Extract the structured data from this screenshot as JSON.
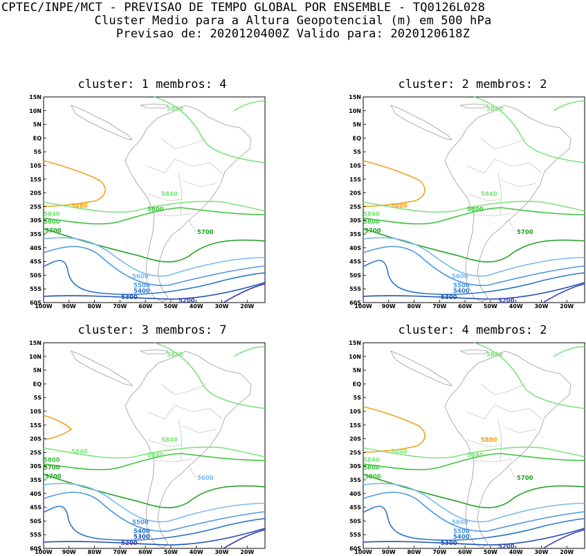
{
  "header": {
    "line1": "CPTEC/INPE/MCT - PREVISAO DE TEMPO GLOBAL POR ENSEMBLE - TQ0126L028",
    "line2": "Cluster Medio para a Altura Geopotencial (m) em 500 hPa",
    "line3": "Previsao de: 2020120400Z   Valido para: 2020120618Z"
  },
  "chart_data": [
    {
      "type": "contour-map",
      "title": "cluster: 1  membros: 4",
      "xticks": [
        "100W",
        "90W",
        "80W",
        "70W",
        "60W",
        "50W",
        "40W",
        "30W",
        "20W"
      ],
      "yticks": [
        "15N",
        "10N",
        "5N",
        "EQ",
        "5S",
        "10S",
        "15S",
        "20S",
        "25S",
        "30S",
        "35S",
        "40S",
        "45S",
        "50S",
        "55S",
        "60S"
      ],
      "contour_labels": [
        "5840",
        "5880",
        "5840",
        "5800",
        "5840",
        "5800",
        "5700",
        "5700",
        "5600",
        "5500",
        "5400",
        "5300",
        "5200"
      ]
    },
    {
      "type": "contour-map",
      "title": "cluster: 2  membros: 2",
      "xticks": [
        "100W",
        "90W",
        "80W",
        "70W",
        "60W",
        "50W",
        "40W",
        "30W",
        "20W"
      ],
      "yticks": [
        "15N",
        "10N",
        "5N",
        "EQ",
        "5S",
        "10S",
        "15S",
        "20S",
        "25S",
        "30S",
        "35S",
        "40S",
        "45S",
        "50S",
        "55S",
        "60S"
      ],
      "contour_labels": [
        "5840",
        "5880",
        "5840",
        "5800",
        "5840",
        "5800",
        "5700",
        "5700",
        "5600",
        "5500",
        "5400",
        "5300",
        "5200"
      ]
    },
    {
      "type": "contour-map",
      "title": "cluster: 3  membros: 7",
      "xticks": [
        "100W",
        "90W",
        "80W",
        "70W",
        "60W",
        "50W",
        "40W",
        "30W",
        "20W"
      ],
      "yticks": [
        "15N",
        "10N",
        "5N",
        "EQ",
        "5S",
        "10S",
        "15S",
        "20S",
        "25S",
        "30S",
        "35S",
        "40S",
        "45S",
        "50S",
        "55S",
        "60S"
      ],
      "contour_labels": [
        "5840",
        "5840",
        "5840",
        "5840",
        "5800",
        "5700",
        "5700",
        "5600",
        "5500",
        "5400",
        "5300",
        "5200"
      ]
    },
    {
      "type": "contour-map",
      "title": "cluster: 4  membros: 2",
      "xticks": [
        "100W",
        "90W",
        "80W",
        "70W",
        "60W",
        "50W",
        "40W",
        "30W",
        "20W"
      ],
      "yticks": [
        "15N",
        "10N",
        "5N",
        "EQ",
        "5S",
        "10S",
        "15S",
        "20S",
        "25S",
        "30S",
        "35S",
        "40S",
        "45S",
        "50S",
        "55S",
        "60S"
      ],
      "contour_labels": [
        "5840",
        "5840",
        "5880",
        "5840",
        "5840",
        "5800",
        "5800",
        "5700",
        "5600",
        "5500",
        "5400",
        "5300",
        "5200"
      ]
    }
  ]
}
